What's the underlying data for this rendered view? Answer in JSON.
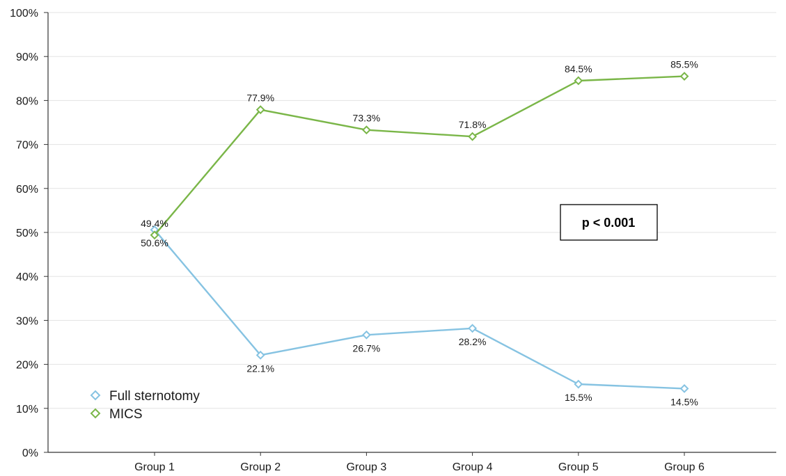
{
  "chart_data": {
    "type": "line",
    "title": "",
    "xlabel": "",
    "ylabel": "",
    "categories": [
      "Group 1",
      "Group 2",
      "Group 3",
      "Group 4",
      "Group 5",
      "Group 6"
    ],
    "ylim": [
      0,
      100
    ],
    "y_ticks": [
      "0%",
      "10%",
      "20%",
      "30%",
      "40%",
      "50%",
      "60%",
      "70%",
      "80%",
      "90%",
      "100%"
    ],
    "grid": "horizontal",
    "legend_position": "bottom-left",
    "series": [
      {
        "name": "Full sternotomy",
        "color": "#86c3e2",
        "marker": "diamond",
        "values": [
          50.6,
          22.1,
          26.7,
          28.2,
          15.5,
          14.5
        ],
        "labels": [
          "50.6%",
          "22.1%",
          "26.7%",
          "28.2%",
          "15.5%",
          "14.5%"
        ],
        "label_position": "below"
      },
      {
        "name": "MICS",
        "color": "#7ab648",
        "marker": "diamond",
        "values": [
          49.4,
          77.9,
          73.3,
          71.8,
          84.5,
          85.5
        ],
        "labels": [
          "49.4%",
          "77.9%",
          "73.3%",
          "71.8%",
          "84.5%",
          "85.5%"
        ],
        "label_position": "above"
      }
    ],
    "annotation": {
      "text": "p < 0.001"
    }
  }
}
